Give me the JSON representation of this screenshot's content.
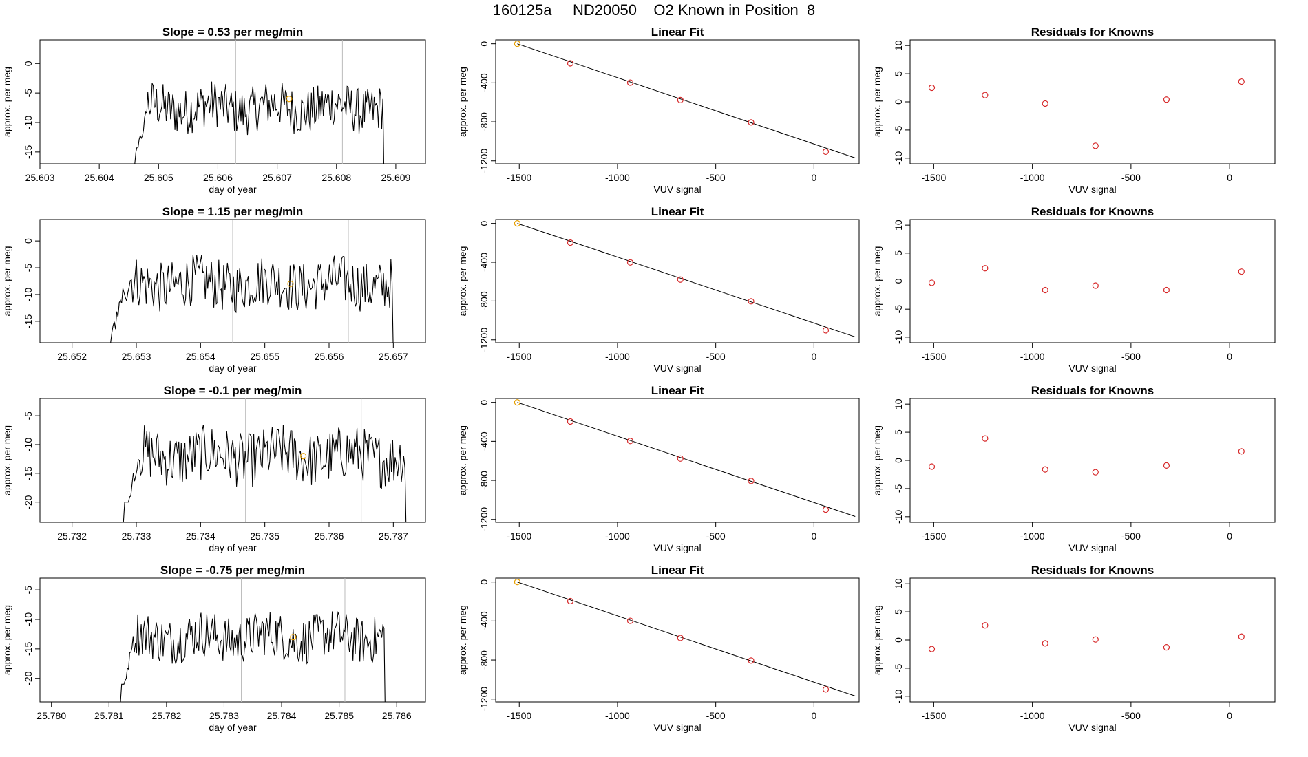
{
  "suptitle": "160125a     ND20050    O2 Known in Position  8",
  "colors": {
    "line": "#000000",
    "point": "#d62728",
    "highlight": "#e69f00",
    "vline": "#bbbbbb"
  },
  "chart_data": [
    {
      "type": "line",
      "panel": "time-series",
      "row": 1,
      "title": "Slope =  0.53  per meg/min",
      "xlabel": "day of year",
      "ylabel": "approx. per meg",
      "xlim": [
        25.603,
        25.6095
      ],
      "ylim": [
        -17,
        4
      ],
      "xticks": [
        "25.603",
        "25.604",
        "25.605",
        "25.606",
        "25.607",
        "25.608",
        "25.609"
      ],
      "yticks": [
        "-15",
        "-10",
        "-5",
        "0"
      ],
      "vlines": [
        25.6063,
        25.6081
      ],
      "x_start": 25.6046,
      "x_end": 25.6088,
      "baseline": -17,
      "mean": -7.5,
      "amp": 2.5,
      "max": -3,
      "min": -15,
      "highlight": {
        "x": 25.6072,
        "y": -6
      }
    },
    {
      "type": "line",
      "panel": "linear-fit",
      "row": 1,
      "title": "Linear Fit",
      "xlabel": "VUV signal",
      "ylabel": "approx. per meg",
      "xlim": [
        -1620,
        230
      ],
      "ylim": [
        -1230,
        40
      ],
      "xticks": [
        "-1500",
        "-1000",
        "-500",
        "0"
      ],
      "yticks": [
        "0",
        "-400",
        "-800",
        "-1200"
      ],
      "points_x": [
        -1510,
        -1240,
        -935,
        -680,
        -320,
        60
      ],
      "points_y": [
        0,
        -200,
        -398,
        -576,
        -806,
        -1106
      ],
      "line_x": [
        -1510,
        210
      ],
      "line_y": [
        0,
        -1170
      ]
    },
    {
      "type": "scatter",
      "panel": "residuals",
      "row": 1,
      "title": "Residuals for Knowns",
      "xlabel": "VUV signal",
      "ylabel": "approx. per meg",
      "xlim": [
        -1620,
        230
      ],
      "ylim": [
        -11,
        11
      ],
      "xticks": [
        "-1500",
        "-1000",
        "-500",
        "0"
      ],
      "yticks": [
        "10",
        "5",
        "0",
        "-5",
        "-10"
      ],
      "points_x": [
        -1510,
        -1240,
        -935,
        -680,
        -320,
        60
      ],
      "points_y": [
        2.5,
        1.2,
        -0.3,
        -7.8,
        0.4,
        3.6
      ]
    },
    {
      "type": "line",
      "panel": "time-series",
      "row": 2,
      "title": "Slope =  1.15  per meg/min",
      "xlabel": "day of year",
      "ylabel": "approx. per meg",
      "xlim": [
        25.6515,
        25.6575
      ],
      "ylim": [
        -19,
        4
      ],
      "xticks": [
        "25.652",
        "25.653",
        "25.654",
        "25.655",
        "25.656",
        "25.657"
      ],
      "yticks": [
        "-15",
        "-10",
        "-5",
        "0"
      ],
      "vlines": [
        25.6545,
        25.6563
      ],
      "x_start": 25.6526,
      "x_end": 25.657,
      "baseline": -19,
      "mean": -8,
      "amp": 3,
      "max": 1,
      "min": -18,
      "highlight": {
        "x": 25.6554,
        "y": -8
      }
    },
    {
      "type": "line",
      "panel": "linear-fit",
      "row": 2,
      "title": "Linear Fit",
      "xlabel": "VUV signal",
      "ylabel": "approx. per meg",
      "xlim": [
        -1620,
        230
      ],
      "ylim": [
        -1230,
        40
      ],
      "xticks": [
        "-1500",
        "-1000",
        "-500",
        "0"
      ],
      "yticks": [
        "0",
        "-400",
        "-800",
        "-1200"
      ],
      "points_x": [
        -1510,
        -1240,
        -935,
        -680,
        -320,
        60
      ],
      "points_y": [
        0,
        -198,
        -402,
        -579,
        -803,
        -1102
      ],
      "line_x": [
        -1510,
        210
      ],
      "line_y": [
        0,
        -1170
      ]
    },
    {
      "type": "scatter",
      "panel": "residuals",
      "row": 2,
      "title": "Residuals for Knowns",
      "xlabel": "VUV signal",
      "ylabel": "approx. per meg",
      "xlim": [
        -1620,
        230
      ],
      "ylim": [
        -11,
        11
      ],
      "xticks": [
        "-1500",
        "-1000",
        "-500",
        "0"
      ],
      "yticks": [
        "10",
        "5",
        "0",
        "-5",
        "-10"
      ],
      "points_x": [
        -1510,
        -1240,
        -935,
        -680,
        -320,
        60
      ],
      "points_y": [
        -0.3,
        2.3,
        -1.6,
        -0.8,
        -1.6,
        1.7
      ]
    },
    {
      "type": "line",
      "panel": "time-series",
      "row": 3,
      "title": "Slope =  -0.1  per meg/min",
      "xlabel": "day of year",
      "ylabel": "approx. per meg",
      "xlim": [
        25.7315,
        25.7375
      ],
      "ylim": [
        -23.5,
        -2
      ],
      "xticks": [
        "25.732",
        "25.733",
        "25.734",
        "25.735",
        "25.736",
        "25.737"
      ],
      "yticks": [
        "-20",
        "-15",
        "-10",
        "-5"
      ],
      "vlines": [
        25.7347,
        25.7365
      ],
      "x_start": 25.7328,
      "x_end": 25.7372,
      "baseline": -23.5,
      "mean": -12,
      "amp": 3,
      "max": -5.5,
      "min": -20,
      "highlight": {
        "x": 25.7356,
        "y": -12
      }
    },
    {
      "type": "line",
      "panel": "linear-fit",
      "row": 3,
      "title": "Linear Fit",
      "xlabel": "VUV signal",
      "ylabel": "approx. per meg",
      "xlim": [
        -1620,
        230
      ],
      "ylim": [
        -1230,
        40
      ],
      "xticks": [
        "-1500",
        "-1000",
        "-500",
        "0"
      ],
      "yticks": [
        "0",
        "-400",
        "-800",
        "-1200"
      ],
      "points_x": [
        -1510,
        -1240,
        -935,
        -680,
        -320,
        60
      ],
      "points_y": [
        0,
        -196,
        -396,
        -576,
        -806,
        -1100
      ],
      "line_x": [
        -1510,
        210
      ],
      "line_y": [
        0,
        -1170
      ]
    },
    {
      "type": "scatter",
      "panel": "residuals",
      "row": 3,
      "title": "Residuals for Knowns",
      "xlabel": "VUV signal",
      "ylabel": "approx. per meg",
      "xlim": [
        -1620,
        230
      ],
      "ylim": [
        -11,
        11
      ],
      "xticks": [
        "-1500",
        "-1000",
        "-500",
        "0"
      ],
      "yticks": [
        "10",
        "5",
        "0",
        "-5",
        "-10"
      ],
      "points_x": [
        -1510,
        -1240,
        -935,
        -680,
        -320,
        60
      ],
      "points_y": [
        -1.1,
        3.9,
        -1.6,
        -2.1,
        -0.9,
        1.6
      ]
    },
    {
      "type": "line",
      "panel": "time-series",
      "row": 4,
      "title": "Slope =  -0.75  per meg/min",
      "xlabel": "day of year",
      "ylabel": "approx. per meg",
      "xlim": [
        25.7798,
        25.7865
      ],
      "ylim": [
        -24,
        -3
      ],
      "xticks": [
        "25.780",
        "25.781",
        "25.782",
        "25.783",
        "25.784",
        "25.785",
        "25.786"
      ],
      "yticks": [
        "-20",
        "-15",
        "-10",
        "-5"
      ],
      "vlines": [
        25.7833,
        25.7851
      ],
      "x_start": 25.7812,
      "x_end": 25.7858,
      "baseline": -24,
      "mean": -13,
      "amp": 2.5,
      "max": -4,
      "min": -21,
      "highlight": {
        "x": 25.7842,
        "y": -13
      }
    },
    {
      "type": "line",
      "panel": "linear-fit",
      "row": 4,
      "title": "Linear Fit",
      "xlabel": "VUV signal",
      "ylabel": "approx. per meg",
      "xlim": [
        -1620,
        230
      ],
      "ylim": [
        -1230,
        40
      ],
      "xticks": [
        "-1500",
        "-1000",
        "-500",
        "0"
      ],
      "yticks": [
        "0",
        "-400",
        "-800",
        "-1200"
      ],
      "points_x": [
        -1510,
        -1240,
        -935,
        -680,
        -320,
        60
      ],
      "points_y": [
        0,
        -196,
        -398,
        -574,
        -806,
        -1102
      ],
      "line_x": [
        -1510,
        210
      ],
      "line_y": [
        0,
        -1170
      ]
    },
    {
      "type": "scatter",
      "panel": "residuals",
      "row": 4,
      "title": "Residuals for Knowns",
      "xlabel": "VUV signal",
      "ylabel": "approx. per meg",
      "xlim": [
        -1620,
        230
      ],
      "ylim": [
        -11,
        11
      ],
      "xticks": [
        "-1500",
        "-1000",
        "-500",
        "0"
      ],
      "yticks": [
        "10",
        "5",
        "0",
        "-5",
        "-10"
      ],
      "points_x": [
        -1510,
        -1240,
        -935,
        -680,
        -320,
        60
      ],
      "points_y": [
        -1.6,
        2.6,
        -0.6,
        0.1,
        -1.3,
        0.6
      ]
    }
  ]
}
